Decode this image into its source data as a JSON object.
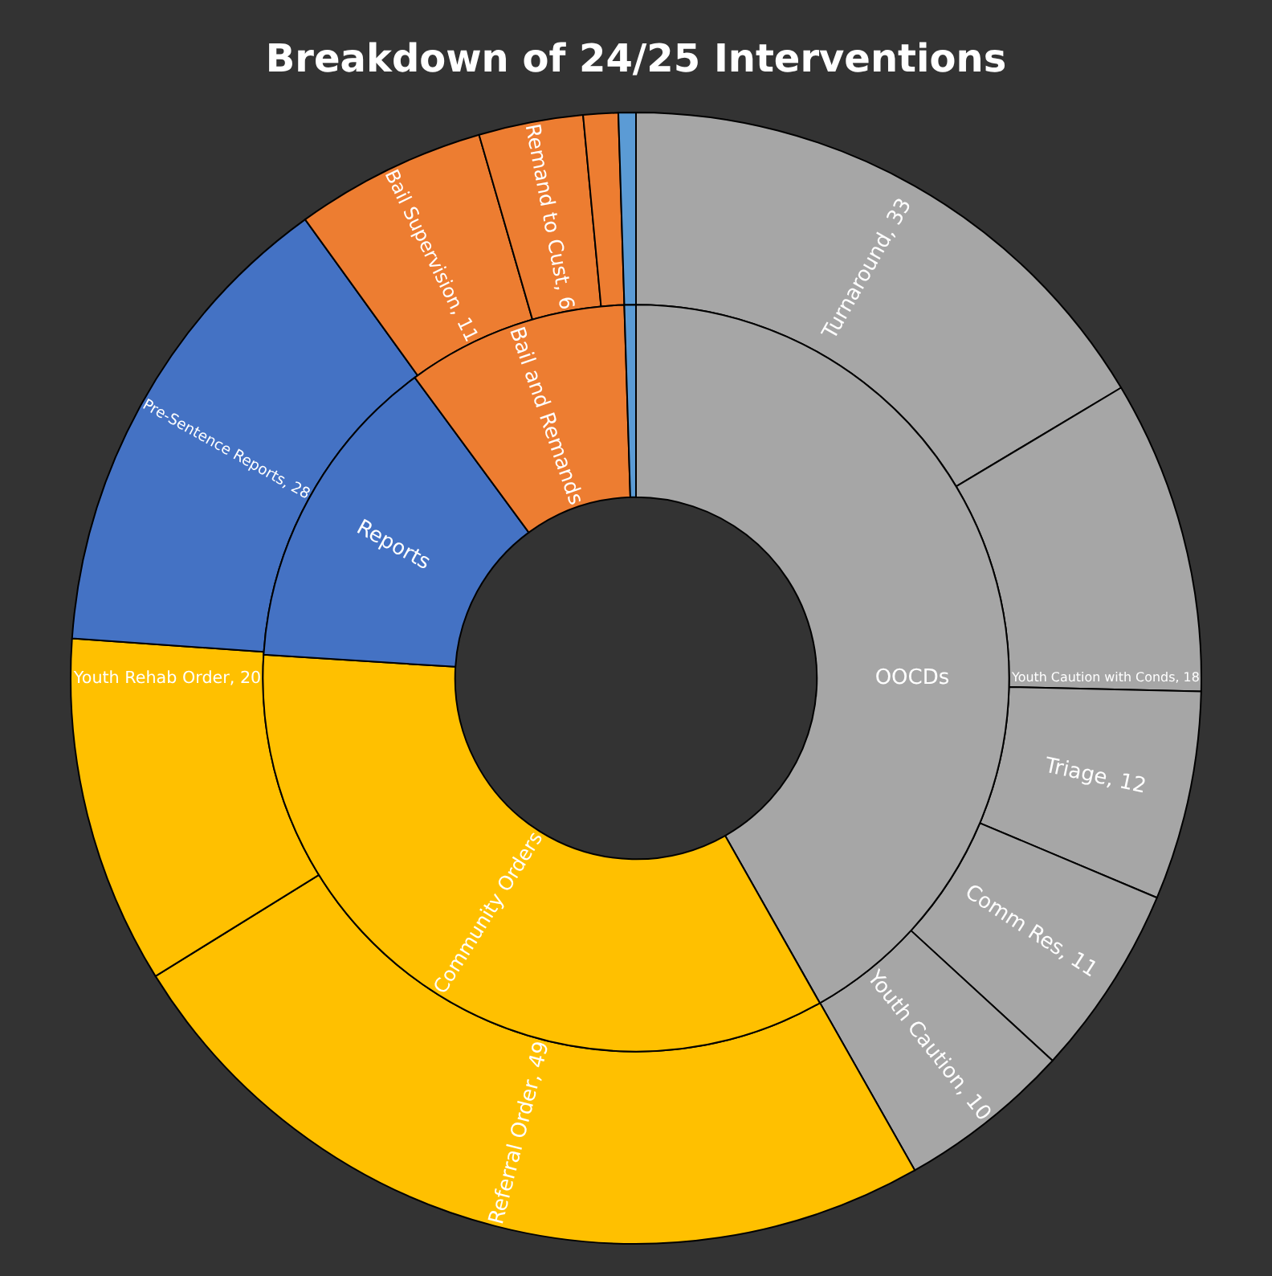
{
  "chart_data": [
    {
      "type": "donut",
      "title": "Breakdown of 24/25 Interventions",
      "categories": [
        "Turnaround, 33",
        "Youth Caution with Conds, 18",
        "Triage, 12",
        "Comm Res, 11",
        "Youth Caution, 10",
        "Referral Order, 49",
        "Youth Rehab Order, 20",
        "Pre-Sentence Reports, 28",
        "Bail Supervision, 11",
        "Remand to Cust, 6",
        null,
        null
      ],
      "values": [
        33,
        18,
        12,
        11,
        10,
        49,
        20,
        28,
        11,
        6,
        2,
        1
      ],
      "colors": [
        "#a6a6a6",
        "#a6a6a6",
        "#a6a6a6",
        "#a6a6a6",
        "#a6a6a6",
        "#ffc000",
        "#ffc000",
        "#4472c4",
        "#ed7d31",
        "#ed7d31",
        "#ed7d31",
        "#5b9bd5"
      ]
    },
    {
      "type": "donut",
      "categories": [
        "OOCDs",
        "Community Orders",
        "Reports",
        "Bail and Remands",
        null
      ],
      "values": [
        41.8,
        34.2,
        13.9,
        9.6,
        0.5
      ],
      "colors": [
        "#a6a6a6",
        "#ffc000",
        "#4472c4",
        "#ed7d31",
        "#5b9bd5"
      ]
    }
  ]
}
